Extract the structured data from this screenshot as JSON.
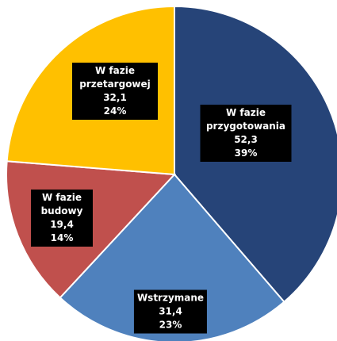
{
  "chart_data": {
    "type": "pie",
    "categories": [
      "W fazie przygotowania",
      "Wstrzymane",
      "W fazie budowy",
      "W fazie przetargowej"
    ],
    "values": [
      52.3,
      31.4,
      19.4,
      32.1
    ],
    "value_labels": [
      "52,3",
      "31,4",
      "19,4",
      "32,1"
    ],
    "percents": [
      39,
      23,
      14,
      24
    ],
    "percent_labels": [
      "39%",
      "23%",
      "14%",
      "24%"
    ],
    "colors": [
      "#264478",
      "#4f81bd",
      "#c0504d",
      "#ffc000"
    ]
  }
}
